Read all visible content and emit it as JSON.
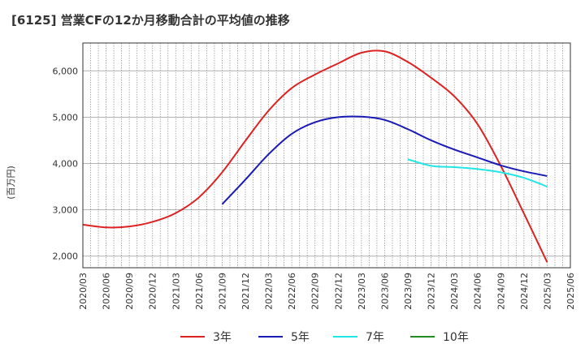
{
  "chart_data": {
    "type": "line",
    "title": "[6125]  営業CFの12か月移動合計の平均値の推移",
    "ylabel": "(百万円)",
    "xlabel": "",
    "ylim": [
      1750,
      6600
    ],
    "yticks": [
      2000,
      3000,
      4000,
      5000,
      6000
    ],
    "ytick_labels": [
      "2,000",
      "3,000",
      "4,000",
      "5,000",
      "6,000"
    ],
    "x_start": "2020-03",
    "x_end": "2025-06",
    "xticks": [
      "2020/03",
      "2020/06",
      "2020/09",
      "2020/12",
      "2021/03",
      "2021/06",
      "2021/09",
      "2021/12",
      "2022/03",
      "2022/06",
      "2022/09",
      "2022/12",
      "2023/03",
      "2023/06",
      "2023/09",
      "2023/12",
      "2024/03",
      "2024/06",
      "2024/09",
      "2024/12",
      "2025/03",
      "2025/06"
    ],
    "grid": true,
    "legend_position": "bottom",
    "series": [
      {
        "name": "3年",
        "color": "#dd2222",
        "x": [
          "2020-03",
          "2020-06",
          "2020-09",
          "2020-12",
          "2021-03",
          "2021-06",
          "2021-09",
          "2021-12",
          "2022-03",
          "2022-06",
          "2022-09",
          "2022-12",
          "2023-03",
          "2023-06",
          "2023-09",
          "2023-12",
          "2024-03",
          "2024-06",
          "2024-09",
          "2024-12",
          "2025-03"
        ],
        "values": [
          2680,
          2620,
          2640,
          2740,
          2930,
          3270,
          3810,
          4490,
          5140,
          5630,
          5920,
          6160,
          6390,
          6420,
          6190,
          5850,
          5450,
          4850,
          3950,
          2920,
          1870
        ]
      },
      {
        "name": "5年",
        "color": "#1a1ab4",
        "x": [
          "2021-09",
          "2021-12",
          "2022-03",
          "2022-06",
          "2022-09",
          "2022-12",
          "2023-03",
          "2023-06",
          "2023-09",
          "2023-12",
          "2024-03",
          "2024-06",
          "2024-09",
          "2024-12",
          "2025-03"
        ],
        "values": [
          3120,
          3650,
          4200,
          4640,
          4890,
          5000,
          5010,
          4940,
          4740,
          4500,
          4300,
          4130,
          3960,
          3830,
          3730
        ]
      },
      {
        "name": "7年",
        "color": "#22e6e6",
        "x": [
          "2023-09",
          "2023-12",
          "2024-03",
          "2024-06",
          "2024-09",
          "2024-12",
          "2025-03"
        ],
        "values": [
          4090,
          3950,
          3920,
          3880,
          3810,
          3690,
          3500
        ]
      },
      {
        "name": "10年",
        "color": "#228b22",
        "x": [],
        "values": []
      }
    ]
  }
}
